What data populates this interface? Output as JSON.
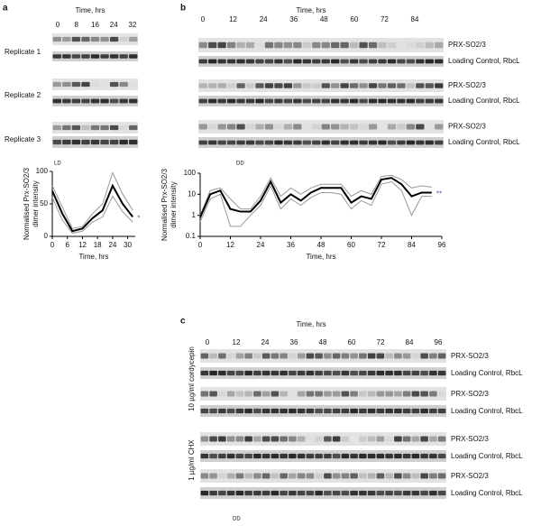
{
  "panel_a": {
    "letter": "a",
    "time_label": "Time, hrs",
    "time_ticks": [
      0,
      8,
      16,
      24,
      32
    ],
    "replicates": [
      "Replicate 1",
      "Replicate 2",
      "Replicate 3"
    ],
    "condition": "LD"
  },
  "panel_b": {
    "letter": "b",
    "time_label": "Time, hrs",
    "time_ticks": [
      0,
      12,
      24,
      36,
      48,
      60,
      72,
      84
    ],
    "row_labels": [
      "PRX-SO2/3",
      "Loading Control, RbcL"
    ],
    "condition": "DD"
  },
  "panel_c": {
    "letter": "c",
    "time_label": "Time, hrs",
    "time_ticks": [
      0,
      12,
      24,
      36,
      48,
      60,
      72,
      84,
      96
    ],
    "row_labels": [
      "PRX-SO2/3",
      "Loading Control, RbcL"
    ],
    "treatments": [
      "10 µg/ml cordycepin",
      "1 µg/ml CHX"
    ],
    "condition": "DD"
  },
  "chart_data": [
    {
      "type": "line",
      "ylabel": [
        "Normalised Prx-SO2/3",
        "dimer intensity"
      ],
      "xlabel": "Time, hrs",
      "x": [
        0,
        4,
        8,
        12,
        16,
        20,
        24,
        28,
        32
      ],
      "series": [
        {
          "color": "#999999",
          "values": [
            78,
            45,
            12,
            15,
            35,
            50,
            98,
            65,
            40
          ]
        },
        {
          "color": "#999999",
          "values": [
            60,
            25,
            5,
            8,
            22,
            30,
            62,
            38,
            22
          ]
        },
        {
          "color": "#000000",
          "values": [
            70,
            35,
            8,
            12,
            28,
            40,
            78,
            50,
            30
          ]
        }
      ],
      "xlim": [
        0,
        33
      ],
      "xticks": [
        0,
        6,
        12,
        18,
        24,
        30
      ],
      "ylim": [
        0,
        100
      ],
      "yticks": [
        0,
        50,
        100
      ],
      "yscale": "linear",
      "annotation": {
        "text": "*",
        "color": "#5a4fa0"
      }
    },
    {
      "type": "line",
      "ylabel": [
        "Normalised Prx-SO2/3",
        "dimer intensity"
      ],
      "xlabel": "Time, hrs",
      "x": [
        0,
        4,
        8,
        12,
        16,
        20,
        24,
        28,
        32,
        36,
        40,
        44,
        48,
        52,
        56,
        60,
        64,
        68,
        72,
        76,
        80,
        84,
        88,
        92
      ],
      "series": [
        {
          "color": "#999999",
          "values": [
            1,
            15,
            20,
            6,
            2,
            2,
            8,
            60,
            8,
            20,
            10,
            20,
            30,
            30,
            30,
            8,
            15,
            10,
            70,
            80,
            50,
            20,
            25,
            22
          ]
        },
        {
          "color": "#999999",
          "values": [
            0.5,
            6,
            10,
            0.3,
            0.3,
            1,
            3,
            25,
            2,
            6,
            3,
            7,
            12,
            12,
            10,
            2,
            5,
            3,
            30,
            40,
            15,
            1,
            8,
            8
          ]
        },
        {
          "color": "#000000",
          "values": [
            0.8,
            10,
            15,
            2,
            1.5,
            1.5,
            5,
            40,
            4,
            10,
            5,
            12,
            20,
            20,
            20,
            4,
            8,
            6,
            50,
            60,
            30,
            8,
            12,
            12
          ]
        }
      ],
      "xlim": [
        0,
        96
      ],
      "xticks": [
        0,
        12,
        24,
        36,
        48,
        60,
        72,
        84,
        96
      ],
      "ylim": [
        0.1,
        100
      ],
      "yticks": [
        0.1,
        1,
        10,
        100
      ],
      "yscale": "log",
      "annotation": {
        "text": "**",
        "color": "#5a4fa0"
      }
    }
  ]
}
